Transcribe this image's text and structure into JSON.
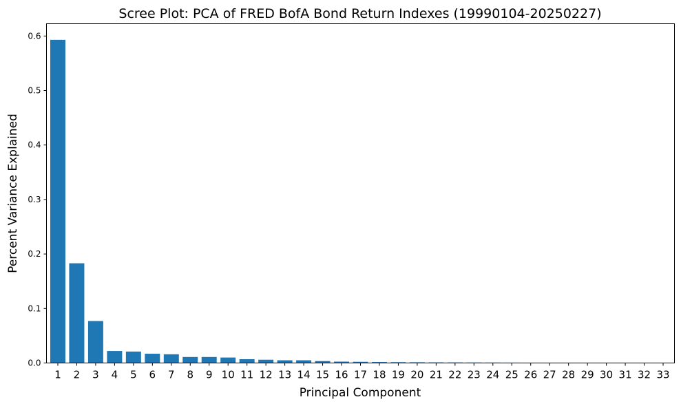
{
  "chart_data": {
    "type": "bar",
    "title": "Scree Plot: PCA of FRED BofA Bond Return Indexes (19990104-20250227)",
    "xlabel": "Principal Component",
    "ylabel": "Percent Variance Explained",
    "categories": [
      "1",
      "2",
      "3",
      "4",
      "5",
      "6",
      "7",
      "8",
      "9",
      "10",
      "11",
      "12",
      "13",
      "14",
      "15",
      "16",
      "17",
      "18",
      "19",
      "20",
      "21",
      "22",
      "23",
      "24",
      "25",
      "26",
      "27",
      "28",
      "29",
      "30",
      "31",
      "32",
      "33"
    ],
    "values": [
      0.593,
      0.183,
      0.077,
      0.022,
      0.021,
      0.017,
      0.016,
      0.011,
      0.011,
      0.01,
      0.007,
      0.006,
      0.005,
      0.005,
      0.0035,
      0.0025,
      0.0022,
      0.0018,
      0.0015,
      0.0013,
      0.0011,
      0.001,
      0.0009,
      0.0008,
      0.0007,
      0.0004,
      0.0003,
      0.0002,
      0.0002,
      0.0001,
      0.0001,
      0.0001,
      0.0001
    ],
    "yticks": [
      "0.0",
      "0.1",
      "0.2",
      "0.3",
      "0.4",
      "0.5",
      "0.6"
    ],
    "ylim": [
      0,
      0.6225
    ],
    "grid": false,
    "bar_color": "#1f77b4"
  }
}
